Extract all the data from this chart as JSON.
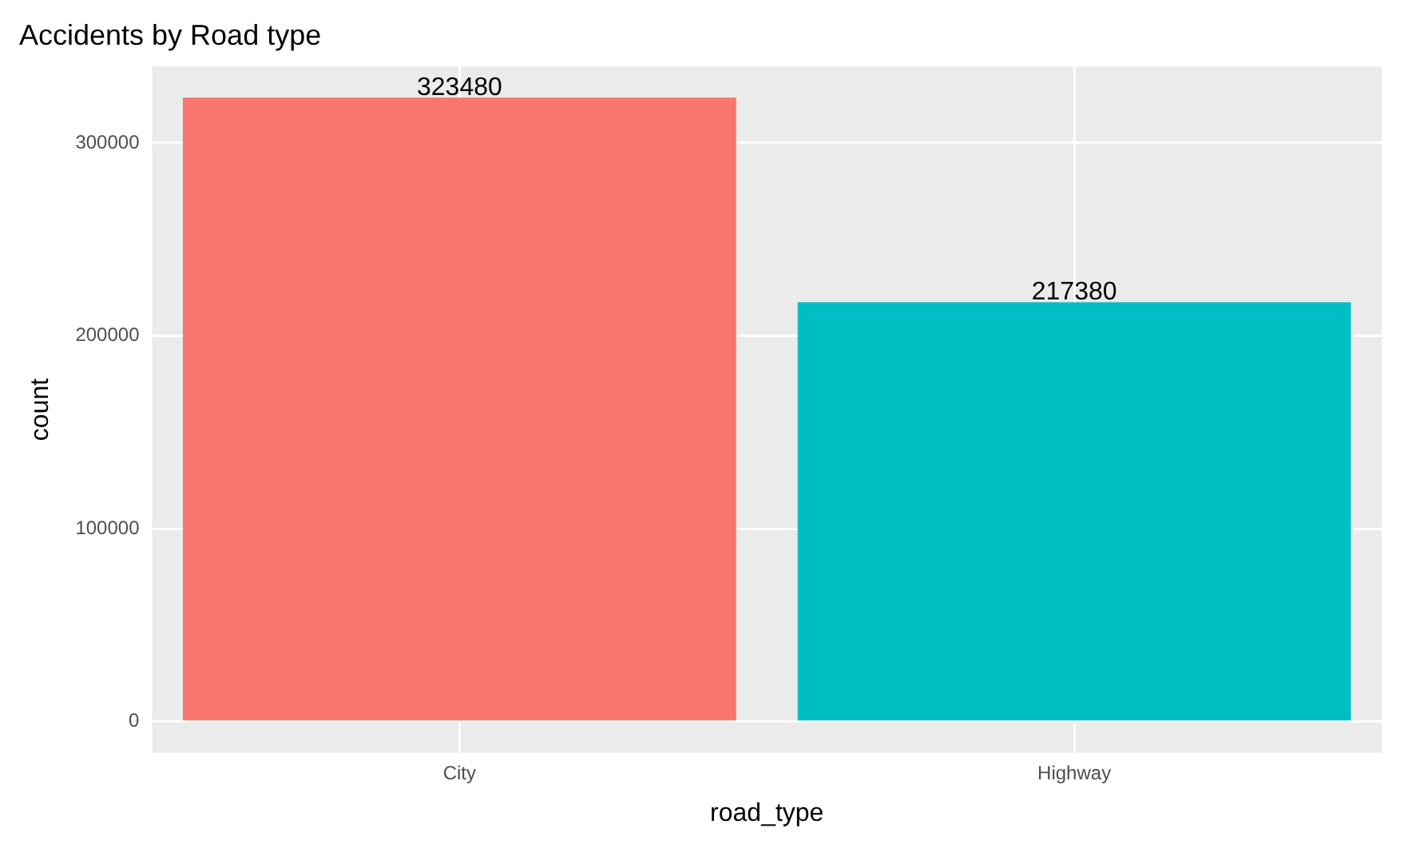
{
  "chart_data": {
    "type": "bar",
    "title": "Accidents by Road type",
    "xlabel": "road_type",
    "ylabel": "count",
    "categories": [
      "City",
      "Highway"
    ],
    "values": [
      323480,
      217380
    ],
    "colors": [
      "#f8766d",
      "#00bfc4"
    ],
    "ylim": [
      -16174,
      339654
    ],
    "yticks": [
      0,
      100000,
      200000,
      300000
    ],
    "grid": true,
    "data_labels": true,
    "legend": false
  }
}
